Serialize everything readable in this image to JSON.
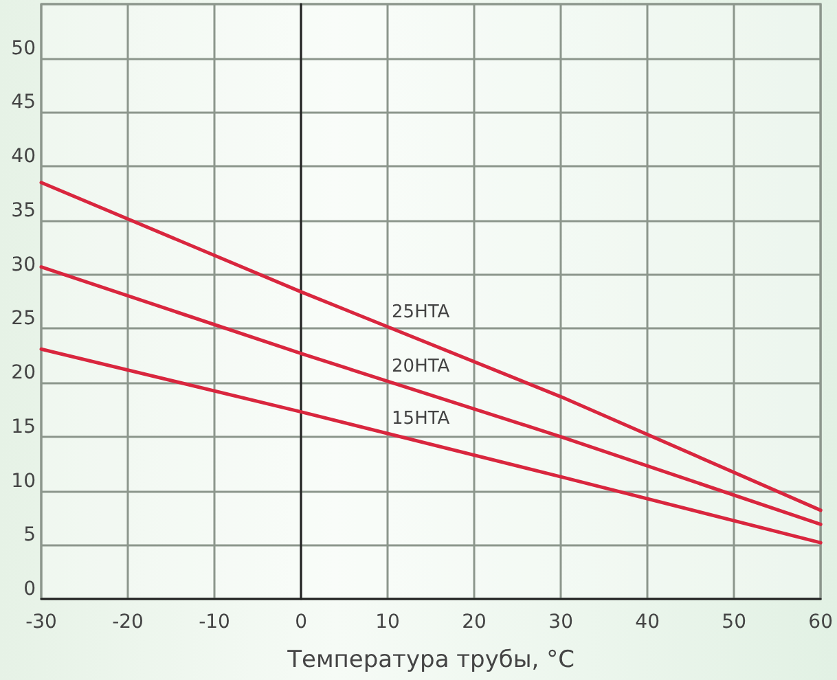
{
  "chart_data": {
    "type": "line",
    "xlabel": "Температура трубы, °C",
    "x": [
      -30,
      0,
      30,
      60
    ],
    "series": [
      {
        "name": "25HTA",
        "color": "#d9263e",
        "values": [
          38.5,
          28.4,
          18.7,
          8.2
        ]
      },
      {
        "name": "20HTA",
        "color": "#d9263e",
        "values": [
          30.7,
          22.7,
          15,
          6.9
        ]
      },
      {
        "name": "15HTA",
        "color": "#d9263e",
        "values": [
          23.1,
          17.3,
          11.3,
          5.2
        ]
      }
    ],
    "xlim": [
      -30,
      60
    ],
    "xticks": [
      -30,
      -20,
      -10,
      0,
      10,
      20,
      30,
      40,
      50,
      60
    ],
    "ylim": [
      0,
      55
    ],
    "yticks": [
      0,
      5,
      10,
      15,
      20,
      25,
      30,
      35,
      40,
      45,
      50,
      {
        "value": 55,
        "label": null
      }
    ],
    "grid": true,
    "legend": false,
    "marker": "none",
    "line_style": "solid"
  }
}
